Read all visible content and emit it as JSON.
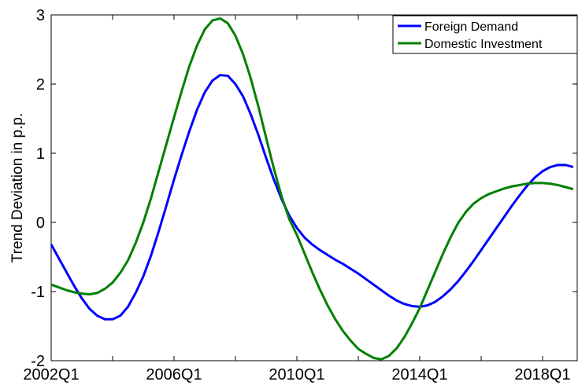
{
  "chart_data": {
    "type": "line",
    "y_label": "Trend Deviation in p.p.",
    "categories": [
      "2002Q1",
      null,
      null,
      null,
      null,
      null,
      null,
      null,
      null,
      null,
      null,
      null,
      null,
      null,
      null,
      null,
      "2006Q1",
      null,
      null,
      null,
      null,
      null,
      null,
      null,
      null,
      null,
      null,
      null,
      null,
      null,
      null,
      null,
      "2010Q1",
      null,
      null,
      null,
      null,
      null,
      null,
      null,
      null,
      null,
      null,
      null,
      null,
      null,
      null,
      null,
      "2014Q1",
      null,
      null,
      null,
      null,
      null,
      null,
      null,
      null,
      null,
      null,
      null,
      null,
      null,
      null,
      null,
      "2018Q1",
      null,
      null,
      null,
      null
    ],
    "series": [
      {
        "name": "Foreign Demand",
        "color": "#0000ff",
        "values": [
          -0.32,
          -0.52,
          -0.72,
          -0.92,
          -1.1,
          -1.25,
          -1.35,
          -1.4,
          -1.4,
          -1.35,
          -1.22,
          -1.02,
          -0.78,
          -0.48,
          -0.13,
          0.24,
          0.62,
          0.98,
          1.32,
          1.63,
          1.88,
          2.05,
          2.13,
          2.12,
          2.0,
          1.82,
          1.56,
          1.26,
          0.93,
          0.62,
          0.34,
          0.1,
          -0.08,
          -0.22,
          -0.32,
          -0.4,
          -0.47,
          -0.54,
          -0.6,
          -0.67,
          -0.74,
          -0.82,
          -0.9,
          -0.98,
          -1.06,
          -1.13,
          -1.18,
          -1.21,
          -1.22,
          -1.2,
          -1.15,
          -1.07,
          -0.97,
          -0.85,
          -0.71,
          -0.56,
          -0.4,
          -0.24,
          -0.08,
          0.08,
          0.24,
          0.39,
          0.53,
          0.65,
          0.74,
          0.8,
          0.83,
          0.83,
          0.8
        ]
      },
      {
        "name": "Domestic Investment",
        "color": "#008000",
        "values": [
          -0.9,
          -0.94,
          -0.98,
          -1.01,
          -1.03,
          -1.04,
          -1.02,
          -0.96,
          -0.87,
          -0.73,
          -0.55,
          -0.3,
          0.0,
          0.35,
          0.74,
          1.13,
          1.52,
          1.9,
          2.26,
          2.56,
          2.79,
          2.92,
          2.95,
          2.88,
          2.7,
          2.43,
          2.08,
          1.67,
          1.22,
          0.78,
          0.38,
          0.05,
          -0.18,
          -0.45,
          -0.72,
          -0.97,
          -1.2,
          -1.4,
          -1.57,
          -1.71,
          -1.83,
          -1.9,
          -1.96,
          -1.98,
          -1.93,
          -1.82,
          -1.66,
          -1.46,
          -1.24,
          -0.98,
          -0.72,
          -0.46,
          -0.22,
          -0.01,
          0.15,
          0.27,
          0.35,
          0.41,
          0.45,
          0.49,
          0.52,
          0.54,
          0.56,
          0.57,
          0.57,
          0.56,
          0.54,
          0.51,
          0.48
        ]
      }
    ],
    "ylim": [
      -2,
      3
    ],
    "yticks": [
      -2,
      -1,
      0,
      1,
      2,
      3
    ],
    "legend": "upper right"
  }
}
